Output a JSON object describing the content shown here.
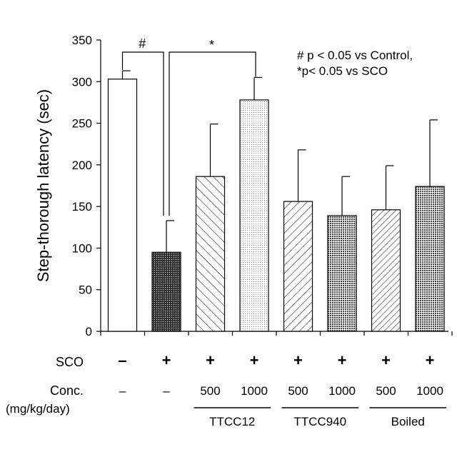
{
  "chart_data": {
    "type": "bar",
    "ylabel": "Step-thorough latency (sec)",
    "ylim": [
      0,
      350
    ],
    "yticks": [
      "0",
      "50",
      "100",
      "150",
      "200",
      "250",
      "300",
      "350"
    ],
    "annotation_lines": [
      "# p < 0.05 vs Control,",
      "*p< 0.05 vs SCO"
    ],
    "sig_marks": [
      "#",
      "*"
    ],
    "bars": [
      {
        "value": 303,
        "error": 10,
        "pattern": "white"
      },
      {
        "value": 95,
        "error": 38,
        "pattern": "dense-dots"
      },
      {
        "value": 186,
        "error": 63,
        "pattern": "hatch-back"
      },
      {
        "value": 278,
        "error": 27,
        "pattern": "light-dots"
      },
      {
        "value": 156,
        "error": 62,
        "pattern": "hatch-fwd"
      },
      {
        "value": 139,
        "error": 47,
        "pattern": "dots"
      },
      {
        "value": 146,
        "error": 53,
        "pattern": "hatch-fwd-fine"
      },
      {
        "value": 174,
        "error": 80,
        "pattern": "dots"
      }
    ],
    "sco_label": "SCO",
    "sco_values": [
      "–",
      "+",
      "+",
      "+",
      "+",
      "+",
      "+",
      "+"
    ],
    "conc_label_1": "Conc.",
    "conc_label_2": "(mg/kg/day)",
    "conc_values": [
      "–",
      "–",
      "500",
      "1000",
      "500",
      "1000",
      "500",
      "1000"
    ],
    "groups": [
      "TTCC12",
      "TTCC940",
      "Boiled"
    ]
  }
}
